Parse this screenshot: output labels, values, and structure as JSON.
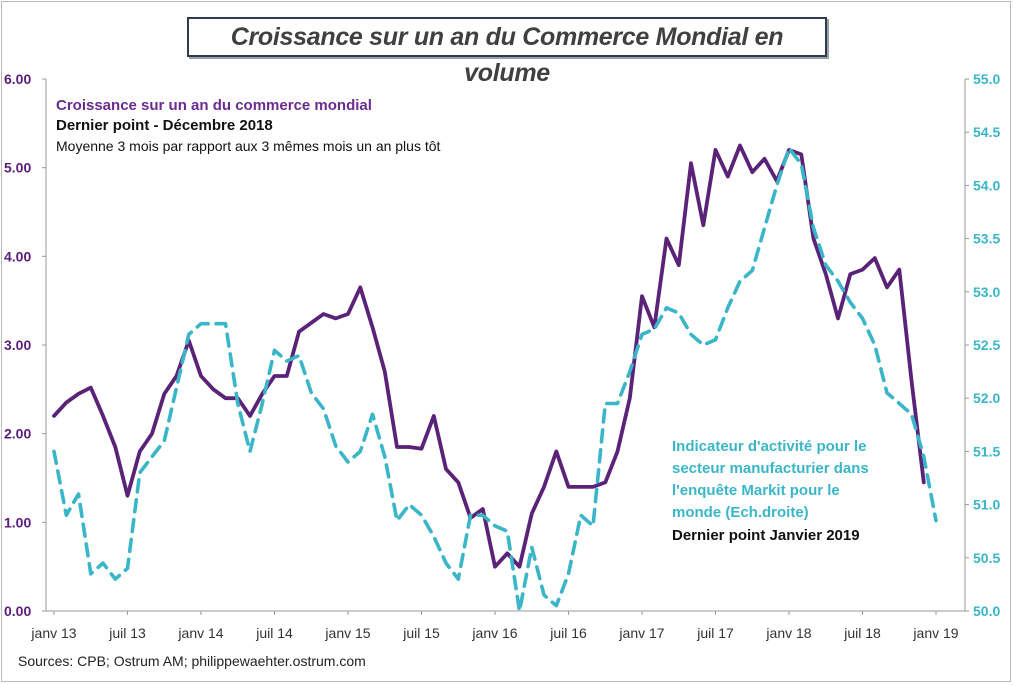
{
  "title": "Croissance sur un an du Commerce Mondial en volume",
  "source": "Sources: CPB; Ostrum AM; philippewaehter.ostrum.com",
  "annotations": {
    "series1_label": "Croissance sur un an du commerce mondial",
    "series1_last": "Dernier point - Décembre 2018",
    "series1_note": "Moyenne 3 mois par rapport aux 3 mêmes mois un an plus tôt",
    "series2_label_lines": [
      "Indicateur d'activité pour le",
      "secteur manufacturier dans",
      "l'enquête Markit pour le",
      "monde (Ech.droite)"
    ],
    "series2_last": "Dernier point Janvier 2019"
  },
  "colors": {
    "series1": "#5b2378",
    "series2": "#3ab6c8"
  },
  "chart_data": {
    "type": "line",
    "x_ticks": [
      "janv 13",
      "juil 13",
      "janv 14",
      "juil 14",
      "janv 15",
      "juil 15",
      "janv 16",
      "juil 16",
      "janv 17",
      "juil 17",
      "janv 18",
      "juil 18",
      "janv 19"
    ],
    "y_left": {
      "ticks": [
        "0.00",
        "1.00",
        "2.00",
        "3.00",
        "4.00",
        "5.00",
        "6.00"
      ],
      "range": [
        0,
        6
      ]
    },
    "y_right": {
      "ticks": [
        "50.0",
        "50.5",
        "51.0",
        "51.5",
        "52.0",
        "52.5",
        "53.0",
        "53.5",
        "54.0",
        "54.5",
        "55.0"
      ],
      "range": [
        50,
        55
      ]
    },
    "grid": false,
    "series": [
      {
        "name": "Croissance sur un an du commerce mondial",
        "axis": "left",
        "style": "solid",
        "start": "2013-01",
        "end": "2018-12",
        "values": [
          2.2,
          2.35,
          2.45,
          2.52,
          2.2,
          1.85,
          1.3,
          1.8,
          2.0,
          2.45,
          2.65,
          3.05,
          2.65,
          2.5,
          2.4,
          2.4,
          2.2,
          2.45,
          2.65,
          2.65,
          3.15,
          3.25,
          3.35,
          3.3,
          3.35,
          3.65,
          3.2,
          2.7,
          1.85,
          1.85,
          1.83,
          2.2,
          1.6,
          1.45,
          1.05,
          1.15,
          0.5,
          0.65,
          0.5,
          1.1,
          1.4,
          1.8,
          1.4,
          1.4,
          1.4,
          1.45,
          1.8,
          2.4,
          3.55,
          3.2,
          4.2,
          3.9,
          5.05,
          4.35,
          5.2,
          4.9,
          5.25,
          4.95,
          5.1,
          4.85,
          5.2,
          5.15,
          4.2,
          3.8,
          3.3,
          3.8,
          3.85,
          3.98,
          3.65,
          3.85,
          2.6,
          1.45
        ]
      },
      {
        "name": "Indicateur d'activité pour le secteur manufacturier dans l'enquête Markit pour le monde (Ech.droite)",
        "axis": "right",
        "style": "dashed",
        "start": "2013-01",
        "end": "2019-01",
        "values": [
          51.5,
          50.9,
          51.1,
          50.35,
          50.45,
          50.3,
          50.4,
          51.3,
          51.45,
          51.6,
          52.1,
          52.6,
          52.7,
          52.7,
          52.7,
          51.95,
          51.5,
          51.95,
          52.45,
          52.35,
          52.4,
          52.05,
          51.9,
          51.55,
          51.4,
          51.5,
          51.85,
          51.45,
          50.85,
          51.0,
          50.9,
          50.7,
          50.45,
          50.3,
          50.9,
          50.9,
          50.8,
          50.75,
          50.0,
          50.6,
          50.15,
          50.05,
          50.35,
          50.9,
          50.8,
          51.95,
          51.95,
          52.25,
          52.6,
          52.65,
          52.85,
          52.8,
          52.6,
          52.5,
          52.55,
          52.85,
          53.1,
          53.2,
          53.6,
          54.0,
          54.35,
          54.2,
          53.6,
          53.25,
          53.1,
          52.9,
          52.75,
          52.5,
          52.05,
          51.95,
          51.85,
          51.45,
          50.85
        ]
      }
    ]
  }
}
